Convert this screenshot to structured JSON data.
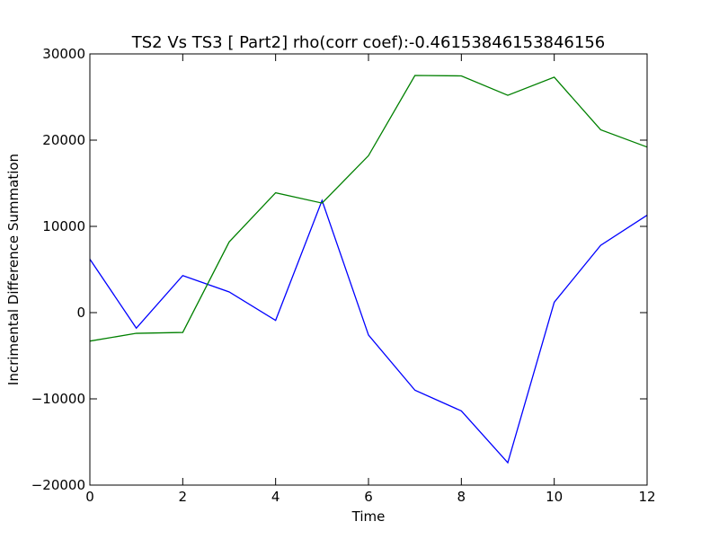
{
  "chart_data": {
    "type": "line",
    "title": "TS2 Vs TS3 [ Part2] rho(corr coef):-0.46153846153846156",
    "xlabel": "Time",
    "ylabel": "Incrimental Difference Summation",
    "xlim": [
      0,
      12
    ],
    "ylim": [
      -20000,
      30000
    ],
    "xticks": [
      0,
      2,
      4,
      6,
      8,
      10,
      12
    ],
    "xtick_labels": [
      "0",
      "2",
      "4",
      "6",
      "8",
      "10",
      "12"
    ],
    "yticks": [
      -20000,
      -10000,
      0,
      10000,
      20000,
      30000
    ],
    "ytick_labels": [
      "−20000",
      "−10000",
      "0",
      "10000",
      "20000",
      "30000"
    ],
    "grid": false,
    "x": [
      0,
      1,
      2,
      3,
      4,
      5,
      6,
      7,
      8,
      9,
      10,
      11,
      12
    ],
    "series": [
      {
        "color": "#0000ff",
        "values": [
          6200,
          -1800,
          4300,
          2400,
          -900,
          13000,
          -2600,
          -9000,
          -11400,
          -17400,
          1200,
          7800,
          11300
        ]
      },
      {
        "color": "#008000",
        "values": [
          -3300,
          -2400,
          -2300,
          8200,
          13900,
          12700,
          18200,
          27500,
          27450,
          25200,
          27300,
          21200,
          19200
        ]
      }
    ]
  }
}
